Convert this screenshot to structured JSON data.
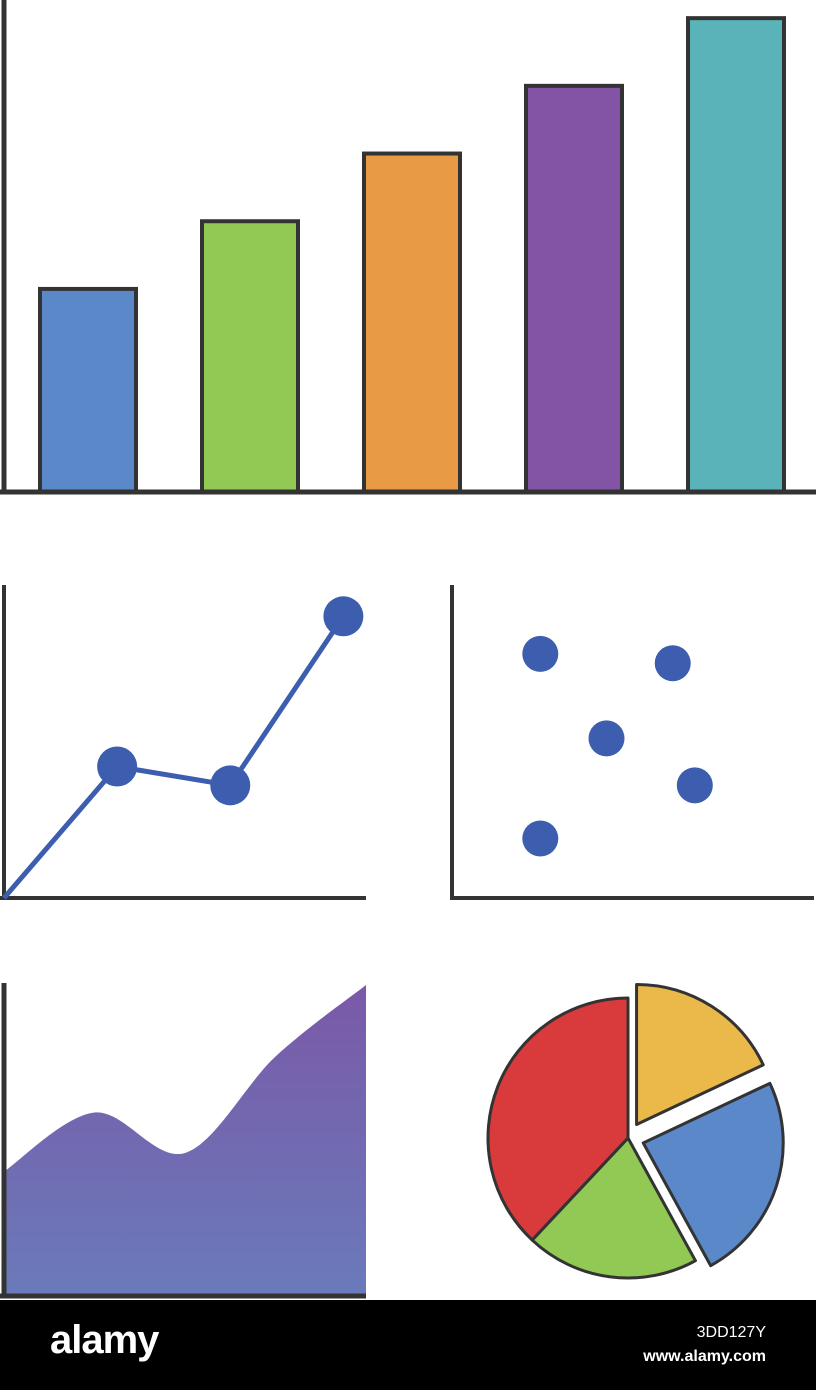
{
  "colors": {
    "axis": "#333333",
    "marker": "#3d5eae",
    "area_top": "#7a59a8",
    "area_bottom": "#6a7aba"
  },
  "chart_data": [
    {
      "type": "bar",
      "values": [
        3,
        4,
        5,
        6,
        7
      ],
      "ylim": [
        0,
        7.15
      ],
      "colors": [
        "#5b88c8",
        "#92c955",
        "#e89a45",
        "#8354a5",
        "#5ab3b8"
      ]
    },
    {
      "type": "line",
      "x": [
        0,
        1,
        2,
        3
      ],
      "y": [
        0,
        4.2,
        3.6,
        9.0
      ],
      "xlim": [
        0,
        3.2
      ],
      "ylim": [
        0,
        10.0
      ]
    },
    {
      "type": "scatter",
      "x": [
        1.0,
        1.75,
        2.5,
        2.75,
        1.0
      ],
      "y": [
        7.8,
        5.1,
        7.5,
        3.6,
        1.9
      ],
      "xlim": [
        0,
        4.1
      ],
      "ylim": [
        0,
        10.0
      ]
    },
    {
      "type": "area",
      "x": [
        0,
        1,
        2,
        3,
        4
      ],
      "y": [
        4.0,
        5.9,
        4.6,
        7.7,
        10.0
      ],
      "xlim": [
        0,
        4
      ],
      "ylim": [
        0,
        10.0
      ]
    },
    {
      "type": "pie",
      "values": [
        18,
        24,
        20,
        38
      ],
      "colors": [
        "#ebb94a",
        "#5b88c8",
        "#92c955",
        "#d93a3b"
      ]
    }
  ],
  "footer": {
    "logo": "alamy",
    "image_id": "3DD127Y",
    "site": "www.alamy.com"
  }
}
